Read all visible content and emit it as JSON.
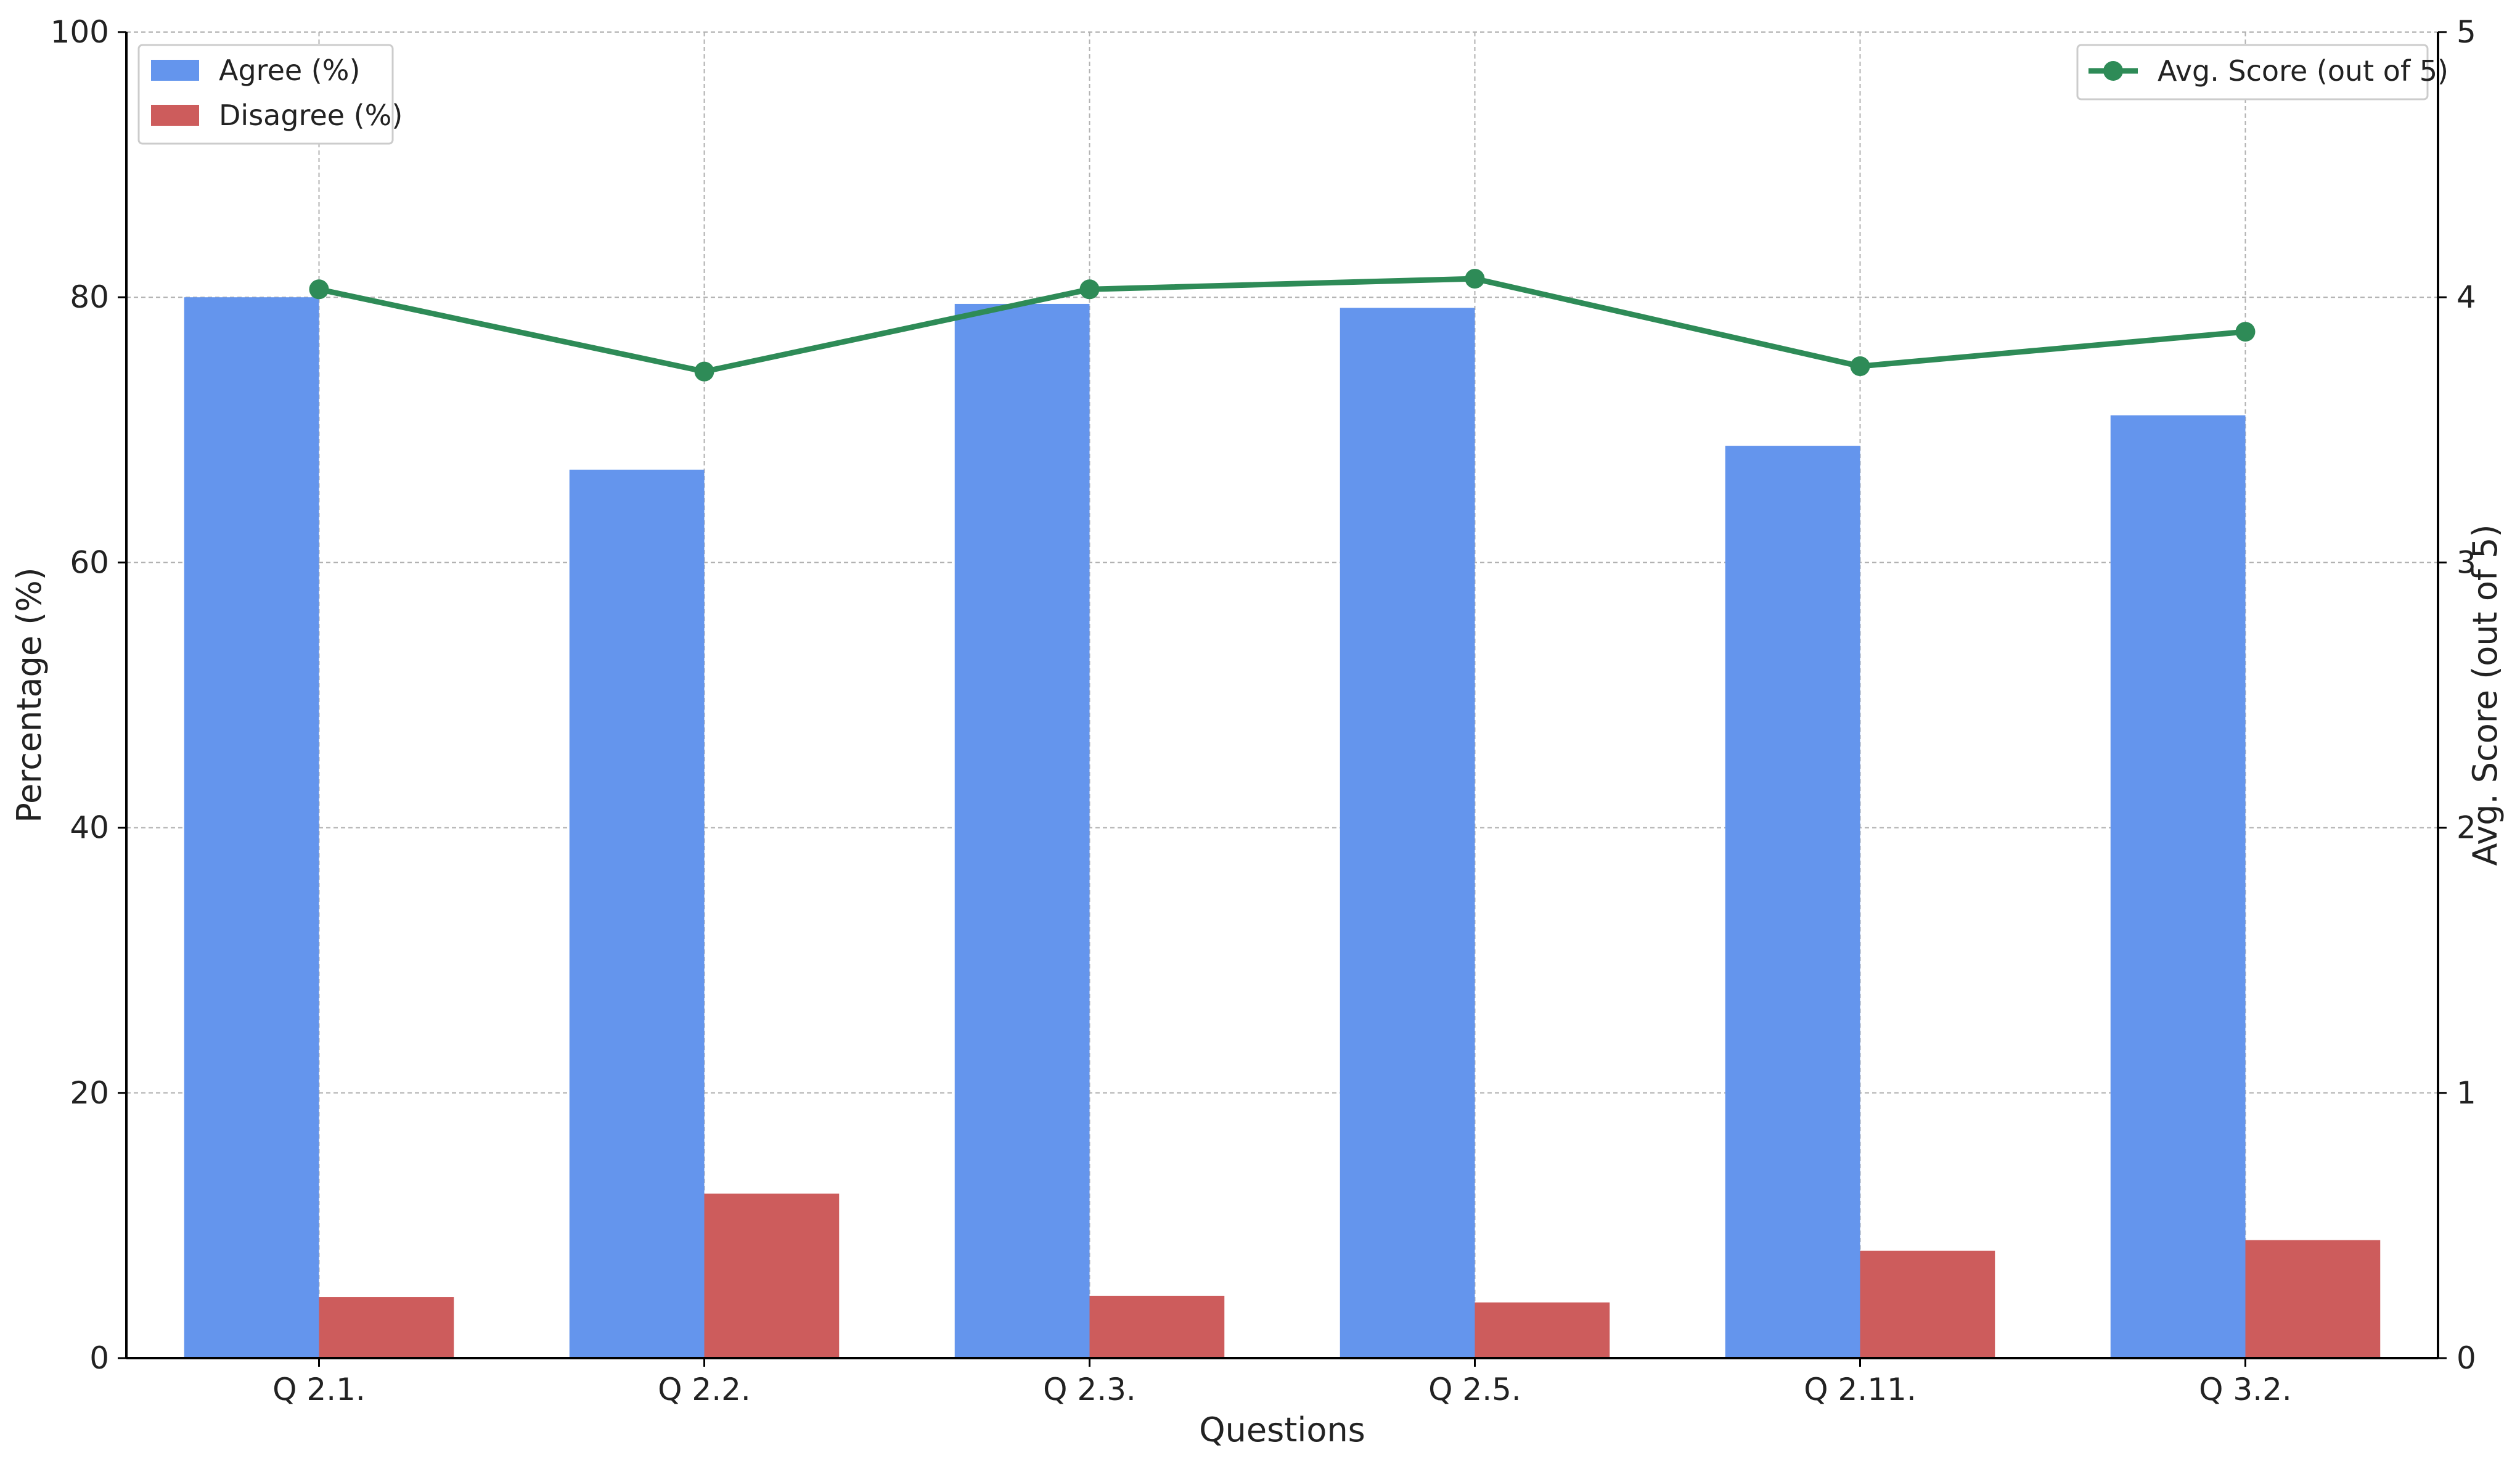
{
  "chart_data": {
    "type": "bar",
    "categories": [
      "Q 2.1.",
      "Q 2.2.",
      "Q 2.3.",
      "Q 2.5.",
      "Q 2.11.",
      "Q 3.2."
    ],
    "series": [
      {
        "name": "Agree (%)",
        "values": [
          80.0,
          67.0,
          79.5,
          79.2,
          68.8,
          71.1
        ],
        "color": "#6495ED",
        "axis": "left",
        "kind": "bar"
      },
      {
        "name": "Disagree (%)",
        "values": [
          4.6,
          12.4,
          4.7,
          4.2,
          8.1,
          8.9
        ],
        "color": "#CD5C5C",
        "axis": "left",
        "kind": "bar"
      },
      {
        "name": "Avg. Score (out of 5)",
        "values": [
          4.03,
          3.72,
          4.03,
          4.07,
          3.74,
          3.87
        ],
        "color": "#2E8B57",
        "axis": "right",
        "kind": "line"
      }
    ],
    "xlabel": "Questions",
    "ylabel": "Percentage (%)",
    "y2label": "Avg. Score (out of 5)",
    "ylim": [
      0,
      100
    ],
    "y2lim": [
      0,
      5
    ],
    "yticks": [
      "0",
      "20",
      "40",
      "60",
      "80",
      "100"
    ],
    "y2ticks": [
      "0",
      "1",
      "2",
      "3",
      "4",
      "5"
    ],
    "grid": true,
    "legend_left_placement": "upper-left",
    "legend_right_placement": "upper-right"
  }
}
